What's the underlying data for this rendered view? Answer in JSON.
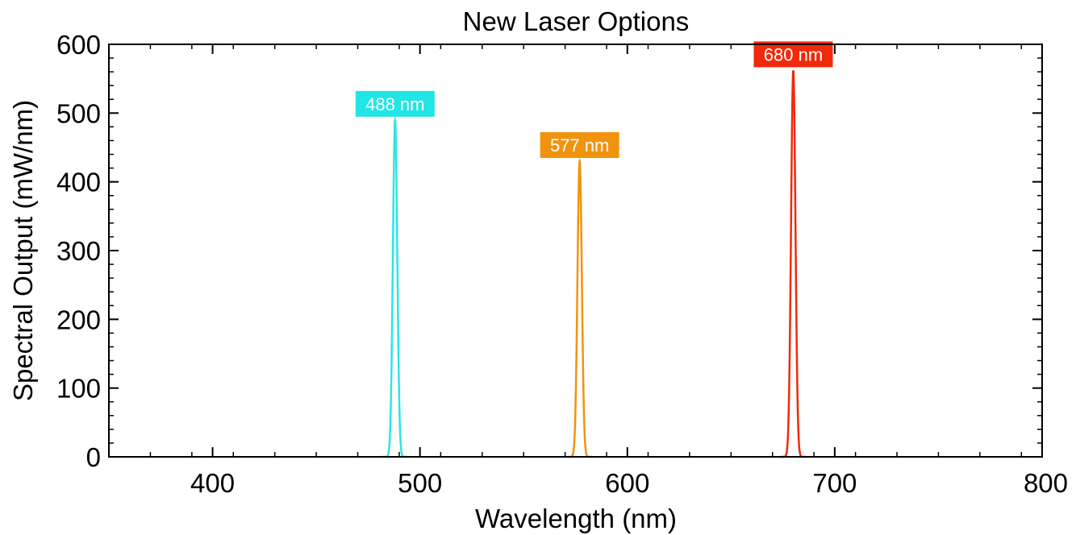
{
  "chart_data": {
    "type": "line",
    "title": "New Laser Options",
    "xlabel": "Wavelength (nm)",
    "ylabel": "Spectral Output (mW/nm)",
    "xlim": [
      350,
      800
    ],
    "ylim": [
      0,
      600
    ],
    "x_ticks": [
      400,
      500,
      600,
      700,
      800
    ],
    "y_ticks": [
      0,
      100,
      200,
      300,
      400,
      500,
      600
    ],
    "x_minor_step": 20,
    "y_minor_step": 20,
    "grid": false,
    "series": [
      {
        "center": 488,
        "peak": 490,
        "fwhm": 2.5,
        "color": "#2CE5E5",
        "label": "488 nm",
        "label_color": "#22E5E5"
      },
      {
        "center": 577,
        "peak": 430,
        "fwhm": 2.5,
        "color": "#F2930D",
        "label": "577 nm",
        "label_color": "#F2930D"
      },
      {
        "center": 680,
        "peak": 562,
        "fwhm": 2.5,
        "color": "#F02A0D",
        "label": "680 nm",
        "label_color": "#F02A0D"
      }
    ]
  }
}
